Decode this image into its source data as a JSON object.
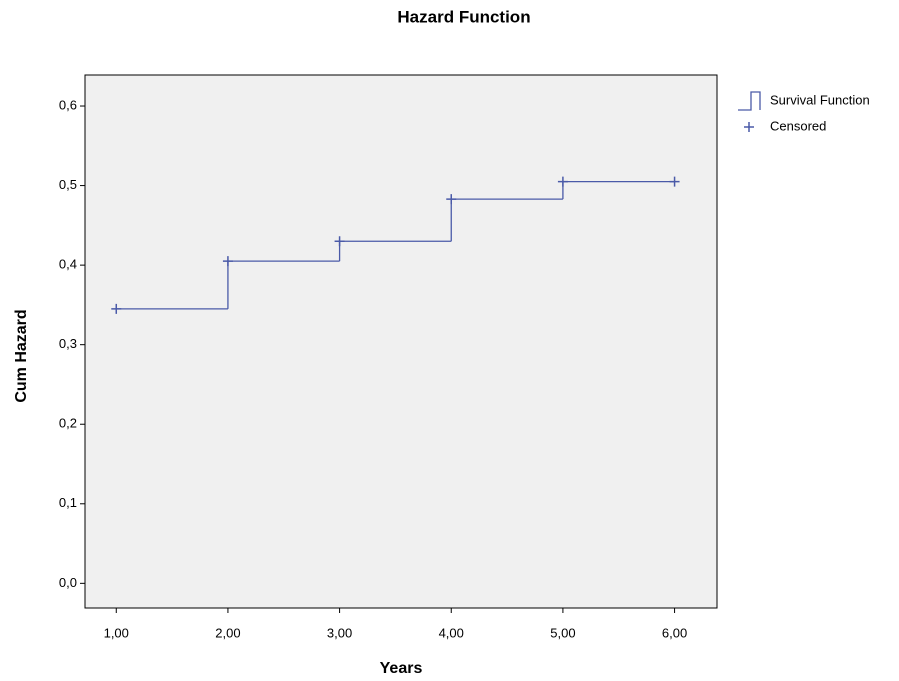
{
  "chart_data": {
    "type": "step",
    "title": "Hazard Function",
    "x_label": "Years",
    "y_label": "Cum Hazard",
    "x": [
      1,
      2,
      3,
      4,
      5,
      6
    ],
    "series": [
      {
        "name": "Survival Function",
        "color": "#4a5aa8",
        "values": [
          0.345,
          0.405,
          0.43,
          0.483,
          0.505,
          0.505
        ]
      },
      {
        "name": "Censored",
        "color": "#4a5aa8",
        "marker": "+",
        "values": [
          0.345,
          0.405,
          0.43,
          0.483,
          0.505,
          0.505
        ]
      }
    ],
    "xlim": [
      0.72,
      6.38
    ],
    "ylim": [
      -0.031,
      0.639
    ],
    "xticks": [
      {
        "value": 1,
        "label": "1,00"
      },
      {
        "value": 2,
        "label": "2,00"
      },
      {
        "value": 3,
        "label": "3,00"
      },
      {
        "value": 4,
        "label": "4,00"
      },
      {
        "value": 5,
        "label": "5,00"
      },
      {
        "value": 6,
        "label": "6,00"
      }
    ],
    "yticks": [
      {
        "value": 0,
        "label": "0,0"
      },
      {
        "value": 0.1,
        "label": "0,1"
      },
      {
        "value": 0.2,
        "label": "0,2"
      },
      {
        "value": 0.3,
        "label": "0,3"
      },
      {
        "value": 0.4,
        "label": "0,4"
      },
      {
        "value": 0.5,
        "label": "0,5"
      },
      {
        "value": 0.6,
        "label": "0,6"
      }
    ],
    "grid": false,
    "legend": "right"
  }
}
